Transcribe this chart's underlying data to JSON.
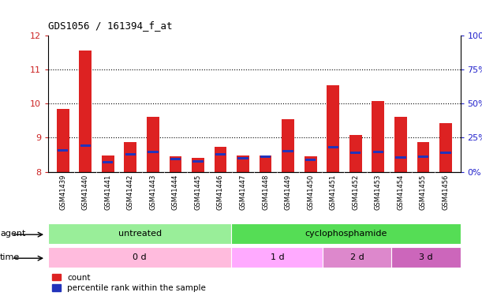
{
  "title": "GDS1056 / 161394_f_at",
  "samples": [
    "GSM41439",
    "GSM41440",
    "GSM41441",
    "GSM41442",
    "GSM41443",
    "GSM41444",
    "GSM41445",
    "GSM41446",
    "GSM41447",
    "GSM41448",
    "GSM41449",
    "GSM41450",
    "GSM41451",
    "GSM41452",
    "GSM41453",
    "GSM41454",
    "GSM41455",
    "GSM41456"
  ],
  "count_values": [
    9.85,
    11.55,
    8.47,
    8.87,
    9.62,
    8.46,
    8.41,
    8.73,
    8.47,
    8.48,
    9.55,
    8.45,
    10.55,
    9.08,
    10.08,
    9.62,
    8.87,
    9.42
  ],
  "percentile_values": [
    8.62,
    8.77,
    8.28,
    8.52,
    8.57,
    8.37,
    8.3,
    8.5,
    8.4,
    8.43,
    8.6,
    8.35,
    8.72,
    8.55,
    8.57,
    8.42,
    8.45,
    8.55
  ],
  "ymin": 8.0,
  "ymax": 12.0,
  "yticks": [
    8,
    9,
    10,
    11,
    12
  ],
  "yright_ticks": [
    "0%",
    "25%",
    "50%",
    "75%",
    "100%"
  ],
  "yright_tick_positions": [
    8.0,
    9.0,
    10.0,
    11.0,
    12.0
  ],
  "bar_color": "#dd2222",
  "percentile_color": "#2233bb",
  "bar_width": 0.55,
  "agent_groups": [
    {
      "label": "untreated",
      "start": 0,
      "end": 8,
      "color": "#99ee99"
    },
    {
      "label": "cyclophosphamide",
      "start": 8,
      "end": 18,
      "color": "#55dd55"
    }
  ],
  "time_groups": [
    {
      "label": "0 d",
      "start": 0,
      "end": 8,
      "color": "#ffbbdd"
    },
    {
      "label": "1 d",
      "start": 8,
      "end": 12,
      "color": "#ffaaff"
    },
    {
      "label": "2 d",
      "start": 12,
      "end": 15,
      "color": "#dd88cc"
    },
    {
      "label": "3 d",
      "start": 15,
      "end": 18,
      "color": "#cc66bb"
    }
  ],
  "agent_label": "agent",
  "time_label": "time",
  "legend_count_label": "count",
  "legend_percentile_label": "percentile rank within the sample",
  "tick_label_color_left": "#cc2222",
  "tick_label_color_right": "#2222cc",
  "xticklabel_bg": "#cccccc"
}
